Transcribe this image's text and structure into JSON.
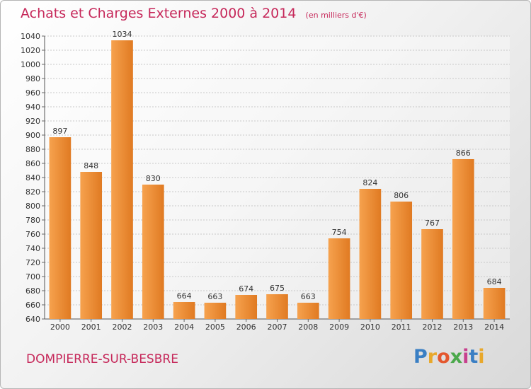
{
  "title": "Achats et Charges Externes 2000 à 2014",
  "subtitle": "(en milliers d'€)",
  "commune": "DOMPIERRE-SUR-BESBRE",
  "logo": {
    "letters": [
      "P",
      "r",
      "o",
      "x",
      "i",
      "t",
      "i"
    ]
  },
  "colors": {
    "title": "#c6285a",
    "bar_light": "#f6a24e",
    "bar_dark": "#e07a22"
  },
  "chart_data": {
    "type": "bar",
    "title": "Achats et Charges Externes 2000 à 2014",
    "xlabel": "",
    "ylabel": "",
    "categories": [
      "2000",
      "2001",
      "2002",
      "2003",
      "2004",
      "2005",
      "2006",
      "2007",
      "2008",
      "2009",
      "2010",
      "2011",
      "2012",
      "2013",
      "2014"
    ],
    "values": [
      897,
      848,
      1034,
      830,
      664,
      663,
      674,
      675,
      663,
      754,
      824,
      806,
      767,
      866,
      684
    ],
    "ylim": [
      640,
      1040
    ],
    "yticks": [
      640,
      660,
      680,
      700,
      720,
      740,
      760,
      780,
      800,
      820,
      840,
      860,
      880,
      900,
      920,
      940,
      960,
      980,
      1000,
      1020,
      1040
    ],
    "grid": true,
    "legend": "none"
  }
}
